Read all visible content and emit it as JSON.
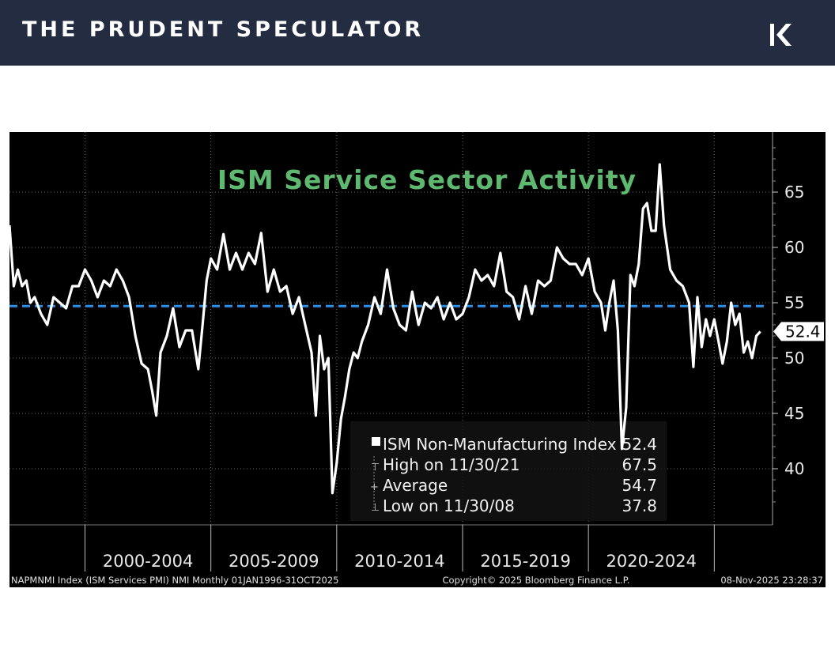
{
  "header": {
    "brand": "THE PRUDENT SPECULATOR"
  },
  "chart_data": {
    "type": "line",
    "title": "ISM Service Sector Activity",
    "xlabel": "",
    "ylabel": "",
    "ylim": [
      35,
      70
    ],
    "xlim": [
      1996.0,
      2026.0
    ],
    "yticks": [
      40,
      45,
      50,
      55,
      60,
      65
    ],
    "x_period_labels": [
      "2000-2004",
      "2005-2009",
      "2010-2014",
      "2015-2019",
      "2020-2024"
    ],
    "x_period_bounds": [
      1999,
      2004,
      2009,
      2014,
      2019,
      2024
    ],
    "average_line": 54.7,
    "last_value_label": "52.4",
    "series": [
      {
        "name": "ISM Non-Manufacturing Index",
        "points": [
          [
            1996.0,
            62.0
          ],
          [
            1996.17,
            56.5
          ],
          [
            1996.33,
            58.0
          ],
          [
            1996.5,
            56.5
          ],
          [
            1996.67,
            57.0
          ],
          [
            1996.83,
            55.0
          ],
          [
            1997.0,
            55.5
          ],
          [
            1997.25,
            54.0
          ],
          [
            1997.5,
            53.0
          ],
          [
            1997.75,
            55.5
          ],
          [
            1998.0,
            55.0
          ],
          [
            1998.25,
            54.5
          ],
          [
            1998.5,
            56.5
          ],
          [
            1998.75,
            56.5
          ],
          [
            1999.0,
            58.0
          ],
          [
            1999.25,
            57.0
          ],
          [
            1999.5,
            55.5
          ],
          [
            1999.75,
            57.0
          ],
          [
            2000.0,
            56.5
          ],
          [
            2000.25,
            58.0
          ],
          [
            2000.5,
            57.0
          ],
          [
            2000.75,
            55.5
          ],
          [
            2001.0,
            52.0
          ],
          [
            2001.25,
            49.5
          ],
          [
            2001.5,
            49.0
          ],
          [
            2001.67,
            47.0
          ],
          [
            2001.83,
            44.8
          ],
          [
            2002.0,
            50.5
          ],
          [
            2002.25,
            52.0
          ],
          [
            2002.5,
            54.5
          ],
          [
            2002.75,
            51.0
          ],
          [
            2003.0,
            52.5
          ],
          [
            2003.25,
            52.5
          ],
          [
            2003.5,
            49.0
          ],
          [
            2003.67,
            53.0
          ],
          [
            2003.83,
            57.0
          ],
          [
            2004.0,
            59.0
          ],
          [
            2004.25,
            58.0
          ],
          [
            2004.5,
            61.2
          ],
          [
            2004.75,
            58.0
          ],
          [
            2005.0,
            59.5
          ],
          [
            2005.25,
            58.0
          ],
          [
            2005.5,
            59.5
          ],
          [
            2005.75,
            58.5
          ],
          [
            2006.0,
            61.3
          ],
          [
            2006.25,
            56.0
          ],
          [
            2006.5,
            58.0
          ],
          [
            2006.75,
            56.0
          ],
          [
            2007.0,
            56.5
          ],
          [
            2007.25,
            54.0
          ],
          [
            2007.5,
            55.5
          ],
          [
            2007.75,
            53.0
          ],
          [
            2008.0,
            50.5
          ],
          [
            2008.17,
            44.8
          ],
          [
            2008.33,
            52.0
          ],
          [
            2008.5,
            49.0
          ],
          [
            2008.67,
            50.0
          ],
          [
            2008.83,
            37.8
          ],
          [
            2009.0,
            40.5
          ],
          [
            2009.17,
            44.5
          ],
          [
            2009.33,
            46.5
          ],
          [
            2009.5,
            49.0
          ],
          [
            2009.67,
            50.5
          ],
          [
            2009.83,
            50.0
          ],
          [
            2010.0,
            51.5
          ],
          [
            2010.25,
            53.0
          ],
          [
            2010.5,
            55.5
          ],
          [
            2010.75,
            54.0
          ],
          [
            2011.0,
            58.0
          ],
          [
            2011.25,
            54.5
          ],
          [
            2011.5,
            53.0
          ],
          [
            2011.75,
            52.5
          ],
          [
            2012.0,
            56.0
          ],
          [
            2012.25,
            53.0
          ],
          [
            2012.5,
            55.0
          ],
          [
            2012.75,
            54.5
          ],
          [
            2013.0,
            55.5
          ],
          [
            2013.25,
            53.5
          ],
          [
            2013.5,
            55.0
          ],
          [
            2013.75,
            53.5
          ],
          [
            2014.0,
            54.0
          ],
          [
            2014.25,
            55.5
          ],
          [
            2014.5,
            58.0
          ],
          [
            2014.75,
            57.0
          ],
          [
            2015.0,
            57.5
          ],
          [
            2015.25,
            56.5
          ],
          [
            2015.5,
            59.5
          ],
          [
            2015.75,
            56.0
          ],
          [
            2016.0,
            55.5
          ],
          [
            2016.25,
            53.5
          ],
          [
            2016.5,
            56.5
          ],
          [
            2016.75,
            54.0
          ],
          [
            2017.0,
            57.0
          ],
          [
            2017.25,
            56.5
          ],
          [
            2017.5,
            57.0
          ],
          [
            2017.75,
            60.0
          ],
          [
            2018.0,
            59.0
          ],
          [
            2018.25,
            58.5
          ],
          [
            2018.5,
            58.5
          ],
          [
            2018.75,
            57.5
          ],
          [
            2019.0,
            59.0
          ],
          [
            2019.25,
            56.0
          ],
          [
            2019.5,
            55.0
          ],
          [
            2019.67,
            52.5
          ],
          [
            2019.83,
            55.0
          ],
          [
            2020.0,
            57.0
          ],
          [
            2020.17,
            52.5
          ],
          [
            2020.33,
            41.8
          ],
          [
            2020.5,
            45.5
          ],
          [
            2020.67,
            57.5
          ],
          [
            2020.83,
            56.5
          ],
          [
            2021.0,
            58.5
          ],
          [
            2021.17,
            63.5
          ],
          [
            2021.33,
            64.0
          ],
          [
            2021.5,
            61.5
          ],
          [
            2021.67,
            61.5
          ],
          [
            2021.83,
            67.5
          ],
          [
            2022.0,
            62.0
          ],
          [
            2022.25,
            58.0
          ],
          [
            2022.5,
            57.0
          ],
          [
            2022.75,
            56.5
          ],
          [
            2023.0,
            55.0
          ],
          [
            2023.17,
            49.2
          ],
          [
            2023.33,
            55.5
          ],
          [
            2023.5,
            51.0
          ],
          [
            2023.67,
            53.5
          ],
          [
            2023.83,
            52.0
          ],
          [
            2024.0,
            53.5
          ],
          [
            2024.17,
            51.5
          ],
          [
            2024.33,
            49.5
          ],
          [
            2024.5,
            51.5
          ],
          [
            2024.67,
            55.0
          ],
          [
            2024.83,
            53.0
          ],
          [
            2025.0,
            54.0
          ],
          [
            2025.17,
            50.5
          ],
          [
            2025.33,
            51.5
          ],
          [
            2025.5,
            50.0
          ],
          [
            2025.67,
            52.0
          ],
          [
            2025.83,
            52.4
          ]
        ]
      }
    ],
    "legend": {
      "position": "bottom-right",
      "rows": [
        {
          "label": "ISM Non-Manufacturing Index",
          "value": "52.4"
        },
        {
          "label": "High on 11/30/21",
          "value": "67.5"
        },
        {
          "label": "Average",
          "value": "54.7"
        },
        {
          "label": "Low on 11/30/08",
          "value": "37.8"
        }
      ]
    },
    "footer": {
      "left": "NAPMNMI Index (ISM Services PMI) NMI Monthly 01JAN1996-31OCT2025",
      "center": "Copyright© 2025 Bloomberg Finance L.P.",
      "right": "08-Nov-2025 23:28:37"
    },
    "colors": {
      "background": "#000000",
      "line": "#ffffff",
      "average": "#2f8de4",
      "title": "#5fb870",
      "grid": "#6b6b6b",
      "banner": "#232c40"
    }
  }
}
